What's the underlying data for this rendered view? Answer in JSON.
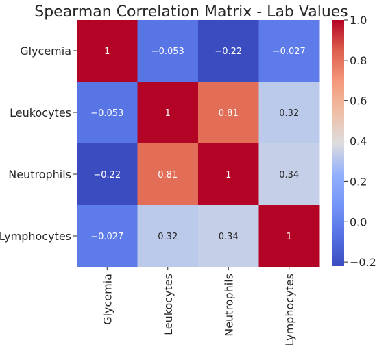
{
  "chart_data": {
    "type": "heatmap",
    "title": "Spearman Correlation Matrix - Lab Values",
    "rows": [
      "Glycemia",
      "Leukocytes",
      "Neutrophils",
      "Lymphocytes"
    ],
    "columns": [
      "Glycemia",
      "Leukocytes",
      "Neutrophils",
      "Lymphocytes"
    ],
    "values": [
      [
        1,
        -0.053,
        -0.22,
        -0.027
      ],
      [
        -0.053,
        1,
        0.81,
        0.32
      ],
      [
        -0.22,
        0.81,
        1,
        0.34
      ],
      [
        -0.027,
        0.32,
        0.34,
        1
      ]
    ],
    "value_labels": [
      [
        "1",
        "−0.053",
        "−0.22",
        "−0.027"
      ],
      [
        "−0.053",
        "1",
        "0.81",
        "0.32"
      ],
      [
        "−0.22",
        "0.81",
        "1",
        "0.34"
      ],
      [
        "−0.027",
        "0.32",
        "0.34",
        "1"
      ]
    ],
    "colormap": "coolwarm",
    "color_range": [
      -0.22,
      1.0
    ],
    "colorbar": {
      "ticks": [
        1.0,
        0.8,
        0.6,
        0.4,
        0.2,
        0.0,
        -0.2
      ],
      "tick_labels": [
        "1.0",
        "0.8",
        "0.6",
        "0.4",
        "0.2",
        "0.0",
        "−0.2"
      ]
    },
    "grid": false,
    "legend": "colorbar-right"
  }
}
